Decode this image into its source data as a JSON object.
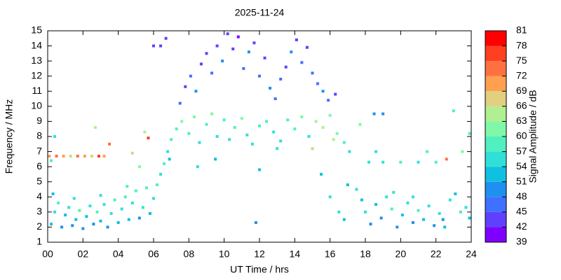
{
  "chart_data": {
    "type": "scatter",
    "title": "2025-11-24",
    "xlabel": "UT Time / hrs",
    "ylabel": "Frequency / MHz",
    "colorbar_label": "Signal Amplitude / dB",
    "xlim": [
      0,
      24
    ],
    "xticks": [
      {
        "value": 0,
        "label": "00"
      },
      {
        "value": 2,
        "label": "02"
      },
      {
        "value": 4,
        "label": "04"
      },
      {
        "value": 6,
        "label": "06"
      },
      {
        "value": 8,
        "label": "08"
      },
      10,
      12,
      14,
      16,
      18,
      20,
      22,
      24
    ],
    "ylim": [
      1,
      15
    ],
    "yticks": [
      1,
      2,
      3,
      4,
      5,
      6,
      7,
      8,
      9,
      10,
      11,
      12,
      13,
      14,
      15
    ],
    "colorlim": [
      39,
      81
    ],
    "colorticks": [
      39,
      42,
      45,
      48,
      51,
      54,
      57,
      60,
      63,
      66,
      69,
      72,
      75,
      78,
      81
    ],
    "colormap": [
      "#8000ff",
      "#6040ff",
      "#4070ff",
      "#2090f0",
      "#10c0e0",
      "#30e0d8",
      "#50f0c0",
      "#80f8a8",
      "#b0f090",
      "#e0d080",
      "#ffa050",
      "#ff7040",
      "#ff4020",
      "#ff0000"
    ],
    "x": [
      0.2,
      0.4,
      0.6,
      0.8,
      1.0,
      1.2,
      1.4,
      1.6,
      1.8,
      2.0,
      2.2,
      2.4,
      2.6,
      2.8,
      3.0,
      3.2,
      3.4,
      3.6,
      3.8,
      4.0,
      4.2,
      4.4,
      4.6,
      4.8,
      5.0,
      5.2,
      5.4,
      5.6,
      5.8,
      6.0,
      6.2,
      6.4,
      6.6,
      6.8,
      7.0,
      6.9,
      0.3,
      1.5,
      3.0,
      4.5,
      0.1,
      0.5,
      0.9,
      1.3,
      1.7,
      2.1,
      2.5,
      2.9,
      3.2,
      0.2,
      2.7,
      3.5,
      4.8,
      5.7,
      5.5,
      6.0,
      6.4,
      6.7,
      0.4,
      5.2,
      7.3,
      7.6,
      8.0,
      8.3,
      8.6,
      9.0,
      9.3,
      9.6,
      10.0,
      10.3,
      10.6,
      11.0,
      11.3,
      11.6,
      12.0,
      12.4,
      12.8,
      13.2,
      13.6,
      14.0,
      14.4,
      14.8,
      15.2,
      15.6,
      16.0,
      16.4,
      16.8,
      17.1,
      15.0,
      16.2,
      7.5,
      7.8,
      8.1,
      8.4,
      8.7,
      9.0,
      9.3,
      9.6,
      9.9,
      10.2,
      10.5,
      10.8,
      11.1,
      11.4,
      11.7,
      12.0,
      12.3,
      12.6,
      12.9,
      13.2,
      13.5,
      13.8,
      14.1,
      14.4,
      14.7,
      15.0,
      15.3,
      15.6,
      15.9,
      16.3,
      9.5,
      12.0,
      15.5,
      16.0,
      16.5,
      17.0,
      11.8,
      13.0,
      8.5,
      16.8,
      17.5,
      17.8,
      18.0,
      18.3,
      18.6,
      18.9,
      19.2,
      19.5,
      19.8,
      20.1,
      20.4,
      20.7,
      21.0,
      21.3,
      21.6,
      21.9,
      22.2,
      22.5,
      22.8,
      23.1,
      23.4,
      23.7,
      23.9,
      18.2,
      19.0,
      20.0,
      21.0,
      22.0,
      22.6,
      23.5,
      18.5,
      19.0,
      23.0,
      23.9,
      17.7,
      18.6,
      21.5,
      22.4,
      19.6,
      20.7
    ],
    "y": [
      2.2,
      3.0,
      3.6,
      2.0,
      2.8,
      3.3,
      2.1,
      2.5,
      3.1,
      1.9,
      2.7,
      3.4,
      2.2,
      3.0,
      2.4,
      3.5,
      2.0,
      2.9,
      3.8,
      2.3,
      3.2,
      4.0,
      2.5,
      3.6,
      4.4,
      2.6,
      3.3,
      4.6,
      2.9,
      3.9,
      4.8,
      5.5,
      6.2,
      7.0,
      7.8,
      6.5,
      4.2,
      3.9,
      4.1,
      4.7,
      6.7,
      6.7,
      6.7,
      6.7,
      6.7,
      6.7,
      6.7,
      6.7,
      6.7,
      6.4,
      8.6,
      7.5,
      6.9,
      7.9,
      8.3,
      14.0,
      14.0,
      14.5,
      8.0,
      6.0,
      8.5,
      9.0,
      8.2,
      9.3,
      7.6,
      8.8,
      9.5,
      8.0,
      9.1,
      7.8,
      8.6,
      9.2,
      8.1,
      7.5,
      8.7,
      9.0,
      8.3,
      7.7,
      9.1,
      8.5,
      9.3,
      8.0,
      9.0,
      8.6,
      9.4,
      8.2,
      7.6,
      7.0,
      7.2,
      7.8,
      10.2,
      11.3,
      12.0,
      11.0,
      12.8,
      13.5,
      12.2,
      14.0,
      13.0,
      14.8,
      13.8,
      14.6,
      12.5,
      13.6,
      14.2,
      12.0,
      13.2,
      11.2,
      10.5,
      11.8,
      12.6,
      13.6,
      14.4,
      12.9,
      13.9,
      12.2,
      11.5,
      11.0,
      10.4,
      10.8,
      6.5,
      5.8,
      5.5,
      4.0,
      3.0,
      4.8,
      2.3,
      7.2,
      6.0,
      2.5,
      4.5,
      3.8,
      3.0,
      2.2,
      3.5,
      2.6,
      4.0,
      3.2,
      2.0,
      2.8,
      3.6,
      2.3,
      3.1,
      2.5,
      3.4,
      2.1,
      2.9,
      2.0,
      3.8,
      4.2,
      3.0,
      3.3,
      2.6,
      6.3,
      6.3,
      6.3,
      6.3,
      6.3,
      6.5,
      7.0,
      9.5,
      9.5,
      9.7,
      8.2,
      8.8,
      7.0,
      7.0,
      2.5,
      4.3,
      4.0
    ],
    "values": [
      51,
      54,
      57,
      48,
      51,
      54,
      48,
      51,
      57,
      48,
      51,
      54,
      48,
      57,
      51,
      54,
      48,
      54,
      57,
      51,
      54,
      57,
      51,
      54,
      57,
      48,
      54,
      57,
      51,
      54,
      57,
      54,
      57,
      54,
      57,
      51,
      51,
      54,
      54,
      57,
      69,
      72,
      69,
      66,
      72,
      69,
      66,
      75,
      69,
      57,
      63,
      72,
      66,
      75,
      63,
      42,
      42,
      42,
      54,
      60,
      57,
      60,
      57,
      60,
      54,
      57,
      60,
      54,
      57,
      54,
      57,
      60,
      54,
      54,
      57,
      57,
      54,
      54,
      57,
      57,
      60,
      54,
      63,
      63,
      60,
      60,
      57,
      54,
      66,
      63,
      45,
      42,
      45,
      48,
      42,
      42,
      45,
      42,
      48,
      42,
      42,
      39,
      45,
      48,
      42,
      45,
      42,
      48,
      45,
      45,
      42,
      48,
      42,
      45,
      42,
      45,
      45,
      48,
      45,
      42,
      51,
      51,
      51,
      54,
      54,
      51,
      48,
      54,
      54,
      51,
      54,
      51,
      54,
      48,
      51,
      48,
      54,
      57,
      48,
      51,
      54,
      48,
      57,
      51,
      54,
      48,
      54,
      51,
      54,
      51,
      57,
      54,
      51,
      54,
      54,
      57,
      54,
      57,
      72,
      60,
      48,
      48,
      57,
      57,
      60,
      54,
      57,
      48,
      54,
      54
    ]
  }
}
